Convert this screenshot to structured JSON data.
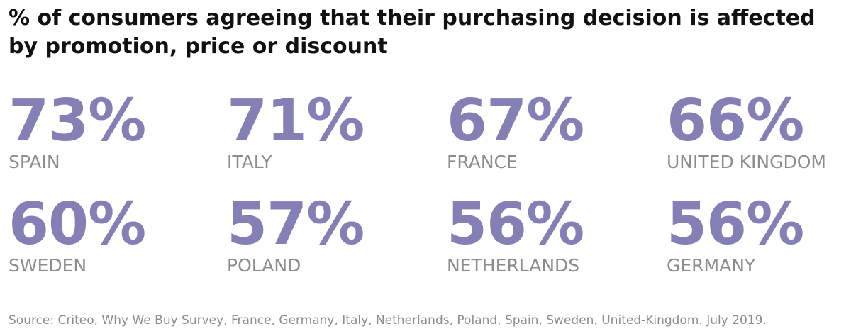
{
  "chart_data": {
    "type": "table",
    "title": "% of consumers agreeing that their purchasing decision is affected by promotion, price or discount",
    "categories": [
      "SPAIN",
      "ITALY",
      "FRANCE",
      "UNITED KINGDOM",
      "SWEDEN",
      "POLAND",
      "NETHERLANDS",
      "GERMANY"
    ],
    "values": [
      73,
      71,
      67,
      66,
      60,
      57,
      56,
      56
    ],
    "unit": "%",
    "value_color": "#8480b5",
    "label_color": "#8c8c8c"
  },
  "source": "Source: Criteo, Why We Buy Survey, France, Germany, Italy, Netherlands, Poland, Spain, Sweden, United-Kingdom. July 2019."
}
